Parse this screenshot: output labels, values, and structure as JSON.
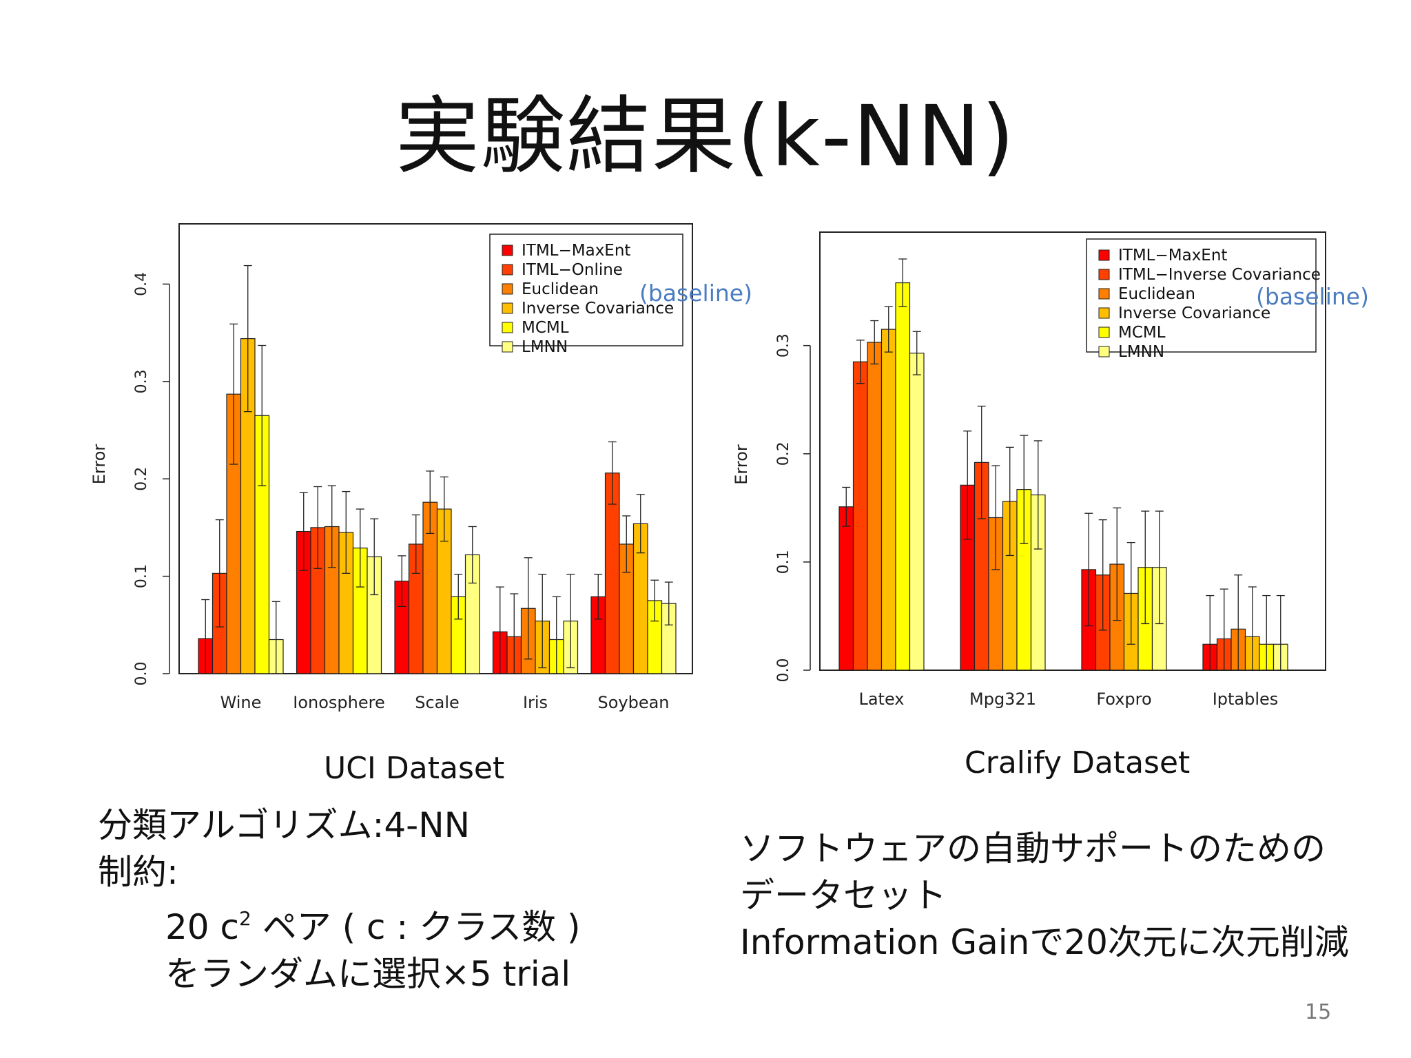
{
  "slide": {
    "title": "実験結果(k-NN)",
    "page_number": "15"
  },
  "colors": {
    "series": [
      "#ff0000",
      "#ff4000",
      "#ff8000",
      "#ffbf00",
      "#ffff00",
      "#ffff80"
    ],
    "baseline_annotation": "#4a7cc0"
  },
  "left_block": {
    "caption": "UCI Dataset",
    "line1": "分類アルゴリズム:4-NN",
    "line2": "制約:",
    "line3_prefix": "20 c",
    "line3_sup": "2",
    "line3_suffix": " ペア ( c : クラス数 )",
    "line4": "をランダムに選択×5 trial"
  },
  "right_block": {
    "caption": "Cralify Dataset",
    "line1": "ソフトウェアの自動サポートのための",
    "line2": "データセット",
    "line3": "Information Gainで20次元に次元削減"
  },
  "chart_data": [
    {
      "type": "bar",
      "ylabel": "Error",
      "ylim": [
        0,
        0.43
      ],
      "yticks": [
        "0.0",
        "0.1",
        "0.2",
        "0.3",
        "0.4"
      ],
      "categories": [
        "Wine",
        "Ionosphere",
        "Scale",
        "Iris",
        "Soybean"
      ],
      "legend_position": "top-right",
      "baseline_label": "(baseline)",
      "series": [
        {
          "name": "ITML−MaxEnt",
          "values": [
            0.036,
            0.146,
            0.095,
            0.043,
            0.079
          ],
          "err": [
            0.04,
            0.04,
            0.026,
            0.046,
            0.023
          ]
        },
        {
          "name": "ITML−Online",
          "values": [
            0.103,
            0.15,
            0.133,
            0.038,
            0.206
          ],
          "err": [
            0.055,
            0.042,
            0.03,
            0.044,
            0.032
          ]
        },
        {
          "name": "Euclidean",
          "values": [
            0.287,
            0.151,
            0.176,
            0.067,
            0.133
          ],
          "err": [
            0.072,
            0.042,
            0.032,
            0.052,
            0.029
          ]
        },
        {
          "name": "Inverse Covariance",
          "values": [
            0.344,
            0.145,
            0.169,
            0.054,
            0.154
          ],
          "err": [
            0.075,
            0.042,
            0.033,
            0.048,
            0.03
          ]
        },
        {
          "name": "MCML",
          "values": [
            0.265,
            0.129,
            0.079,
            0.035,
            0.075
          ],
          "err": [
            0.072,
            0.04,
            0.023,
            0.044,
            0.021
          ]
        },
        {
          "name": "LMNN",
          "values": [
            0.035,
            0.12,
            0.122,
            0.054,
            0.072
          ],
          "err": [
            0.039,
            0.039,
            0.029,
            0.048,
            0.022
          ]
        }
      ]
    },
    {
      "type": "bar",
      "ylabel": "Error",
      "ylim": [
        0,
        0.38
      ],
      "yticks": [
        "0.0",
        "0.1",
        "0.2",
        "0.3"
      ],
      "categories": [
        "Latex",
        "Mpg321",
        "Foxpro",
        "Iptables"
      ],
      "legend_position": "top-right",
      "baseline_label": "(baseline)",
      "series": [
        {
          "name": "ITML−MaxEnt",
          "values": [
            0.151,
            0.171,
            0.093,
            0.024
          ],
          "err": [
            0.018,
            0.05,
            0.052,
            0.045
          ]
        },
        {
          "name": "ITML−Inverse Covariance",
          "values": [
            0.285,
            0.192,
            0.088,
            0.029
          ],
          "err": [
            0.02,
            0.052,
            0.051,
            0.046
          ]
        },
        {
          "name": "Euclidean",
          "values": [
            0.303,
            0.141,
            0.098,
            0.038
          ],
          "err": [
            0.02,
            0.048,
            0.052,
            0.05
          ]
        },
        {
          "name": "Inverse Covariance",
          "values": [
            0.315,
            0.156,
            0.071,
            0.031
          ],
          "err": [
            0.021,
            0.05,
            0.047,
            0.046
          ]
        },
        {
          "name": "MCML",
          "values": [
            0.358,
            0.167,
            0.095,
            0.024
          ],
          "err": [
            0.022,
            0.05,
            0.052,
            0.045
          ]
        },
        {
          "name": "LMNN",
          "values": [
            0.293,
            0.162,
            0.095,
            0.024
          ],
          "err": [
            0.02,
            0.05,
            0.052,
            0.045
          ]
        }
      ]
    }
  ]
}
